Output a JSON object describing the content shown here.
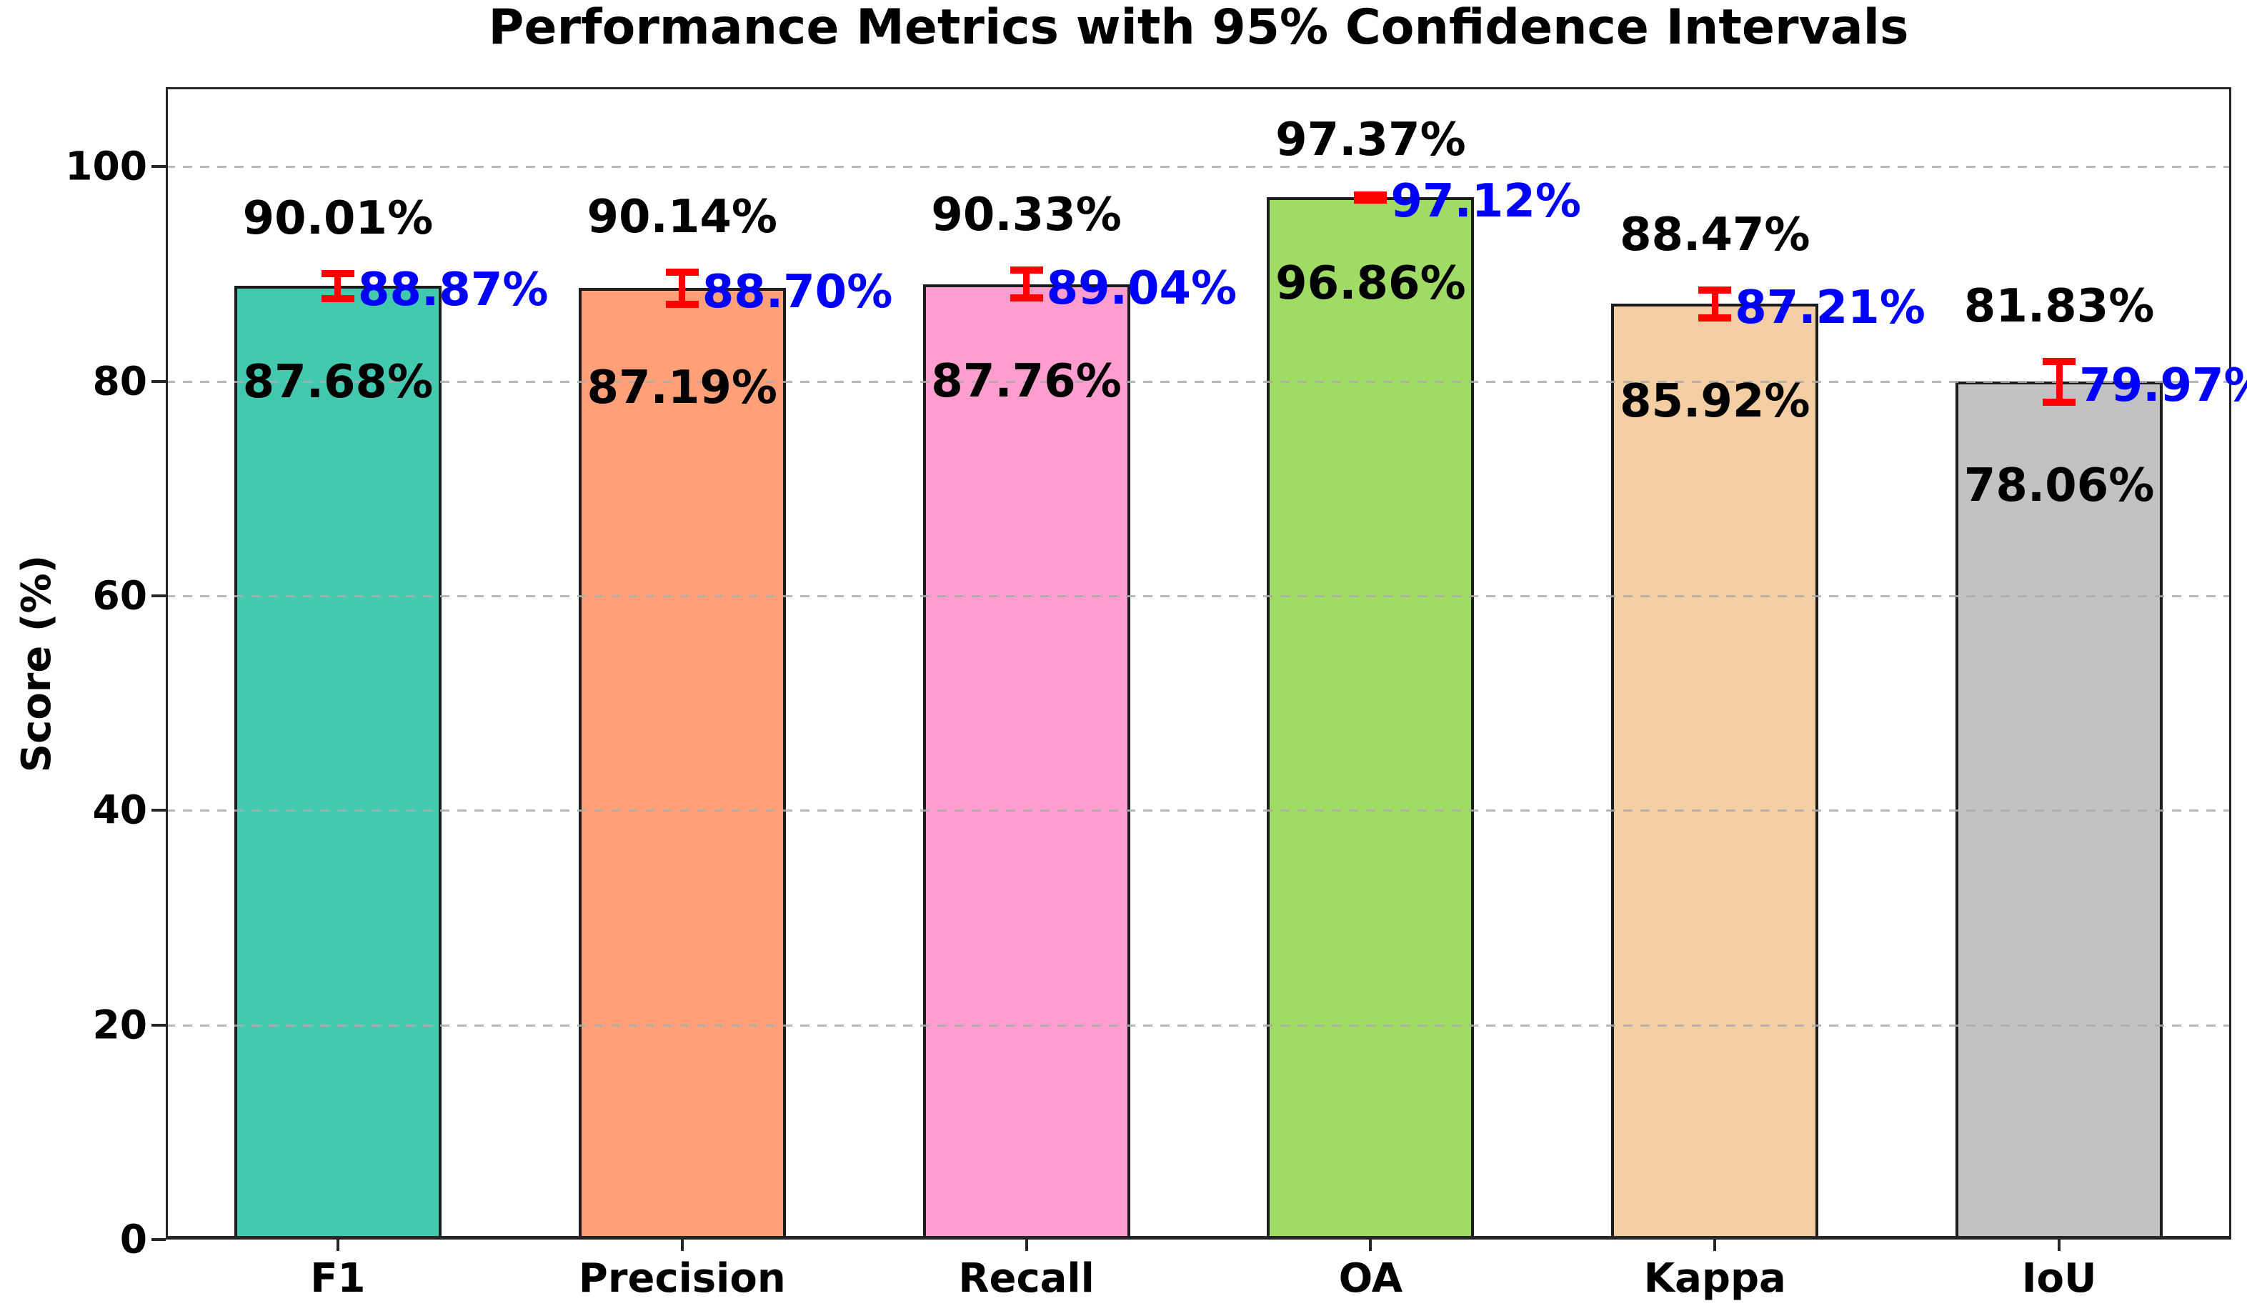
{
  "figure": {
    "title": "Performance Metrics with 95% Confidence Intervals",
    "ylabel": "Score (%)"
  },
  "chart_data": {
    "type": "bar",
    "title": "Performance Metrics with 95% Confidence Intervals",
    "xlabel": "",
    "ylabel": "Score (%)",
    "categories": [
      "F1",
      "Precision",
      "Recall",
      "OA",
      "Kappa",
      "IoU"
    ],
    "series": [
      {
        "name": "mean_score",
        "values": [
          88.87,
          88.7,
          89.04,
          97.12,
          87.21,
          79.97
        ]
      },
      {
        "name": "ci_lower_95",
        "values": [
          87.68,
          87.19,
          87.76,
          96.86,
          85.92,
          78.06
        ]
      },
      {
        "name": "ci_upper_95",
        "values": [
          90.01,
          90.14,
          90.33,
          97.37,
          88.47,
          81.83
        ]
      }
    ],
    "value_labels": {
      "mean": [
        "88.87%",
        "88.70%",
        "89.04%",
        "97.12%",
        "87.21%",
        "79.97%"
      ],
      "lower": [
        "87.68%",
        "87.19%",
        "87.76%",
        "96.86%",
        "85.92%",
        "78.06%"
      ],
      "upper": [
        "90.01%",
        "90.14%",
        "90.33%",
        "97.37%",
        "88.47%",
        "81.83%"
      ]
    },
    "bar_colors": [
      "#43C9B0",
      "#FFA078",
      "#FD9ECF",
      "#A0DB66",
      "#F3CEA2",
      "#C2C2C2"
    ],
    "bar_edge_color": "#1c1c1c",
    "error_bar_color": "#FF0000",
    "label_colors": {
      "mean": "#0000FF",
      "upper": "#000000",
      "lower": "#000000"
    },
    "yticks": [
      0,
      20,
      40,
      60,
      80,
      100
    ],
    "ylim": [
      0,
      107.4
    ],
    "grid": {
      "axis": "y",
      "style": "dashed",
      "color": "#ACACAC",
      "on": true
    },
    "legend": null
  }
}
